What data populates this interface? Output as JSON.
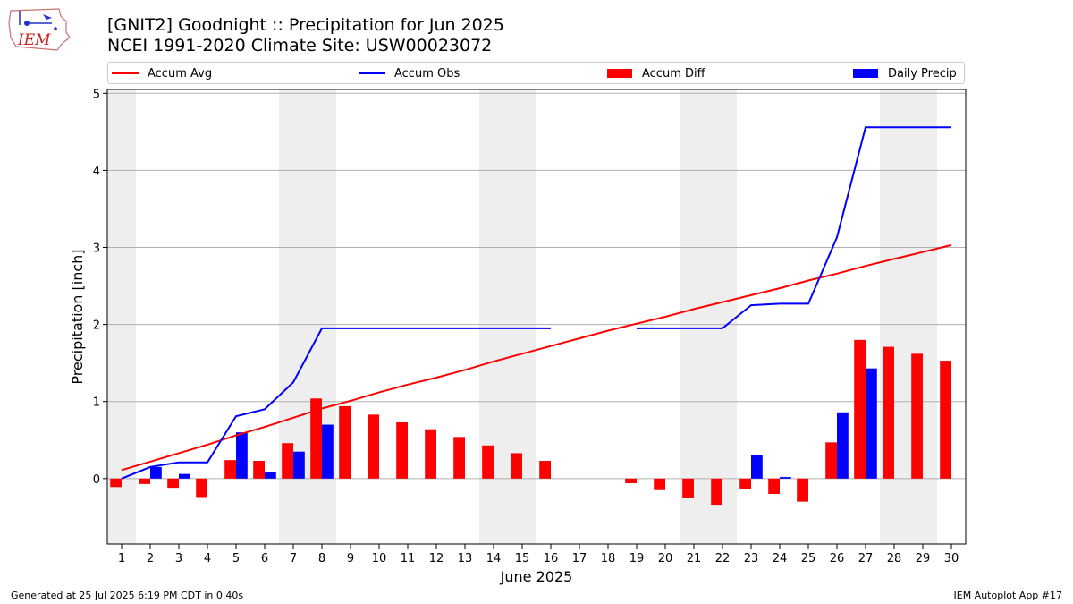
{
  "title_line1": "[GNIT2] Goodnight :: Precipitation for Jun 2025",
  "title_line2": "NCEI 1991-2020 Climate Site: USW00023072",
  "logo_text": "IEM",
  "footer_left": "Generated at 25 Jul 2025 6:19 PM CDT in 0.40s",
  "footer_right": "IEM Autoplot App #17",
  "colors": {
    "avg": "#ff0000",
    "obs": "#0000ff",
    "diff": "#ff0000",
    "daily": "#0000ff",
    "weekend": "#eeeeee",
    "grid": "#b0b0b0"
  },
  "legend": [
    {
      "label": "Accum Avg",
      "kind": "line",
      "color": "#ff0000"
    },
    {
      "label": "Accum Obs",
      "kind": "line",
      "color": "#0000ff"
    },
    {
      "label": "Accum Diff",
      "kind": "patch",
      "color": "#ff0000"
    },
    {
      "label": "Daily Precip",
      "kind": "patch",
      "color": "#0000ff"
    }
  ],
  "chart_data": {
    "type": "bar",
    "xlabel": "June 2025",
    "ylabel": "Precipitation [inch]",
    "xlim": [
      0.5,
      30.5
    ],
    "ylim": [
      -0.85,
      5.05
    ],
    "y_ticks": [
      0,
      1,
      2,
      3,
      4,
      5
    ],
    "x_ticks": [
      1,
      2,
      3,
      4,
      5,
      6,
      7,
      8,
      9,
      10,
      11,
      12,
      13,
      14,
      15,
      16,
      17,
      18,
      19,
      20,
      21,
      22,
      23,
      24,
      25,
      26,
      27,
      28,
      29,
      30
    ],
    "grid": "horizontal",
    "legend_position": "top",
    "weekend_shading": [
      [
        0.5,
        1.5
      ],
      [
        6.5,
        8.5
      ],
      [
        13.5,
        15.5
      ],
      [
        20.5,
        22.5
      ],
      [
        27.5,
        29.5
      ]
    ],
    "days": [
      1,
      2,
      3,
      4,
      5,
      6,
      7,
      8,
      9,
      10,
      11,
      12,
      13,
      14,
      15,
      16,
      17,
      18,
      19,
      20,
      21,
      22,
      23,
      24,
      25,
      26,
      27,
      28,
      29,
      30
    ],
    "series": [
      {
        "name": "Accum Avg",
        "kind": "line",
        "values": [
          0.11,
          0.22,
          0.33,
          0.44,
          0.56,
          0.67,
          0.79,
          0.91,
          1.01,
          1.12,
          1.22,
          1.31,
          1.41,
          1.52,
          1.62,
          1.72,
          1.82,
          1.92,
          2.01,
          2.1,
          2.2,
          2.29,
          2.38,
          2.47,
          2.57,
          2.66,
          2.76,
          2.85,
          2.94,
          3.03
        ]
      },
      {
        "name": "Accum Obs",
        "kind": "line",
        "values": [
          0.0,
          0.15,
          0.21,
          0.21,
          0.81,
          0.9,
          1.25,
          1.95,
          1.95,
          1.95,
          1.95,
          1.95,
          1.95,
          1.95,
          1.95,
          1.95,
          null,
          null,
          1.95,
          1.95,
          1.95,
          1.95,
          2.25,
          2.27,
          2.27,
          3.13,
          4.56,
          4.56,
          4.56,
          4.56
        ]
      },
      {
        "name": "Accum Diff",
        "kind": "bar",
        "values": [
          -0.11,
          -0.07,
          -0.12,
          -0.24,
          0.24,
          0.23,
          0.46,
          1.04,
          0.94,
          0.83,
          0.73,
          0.64,
          0.54,
          0.43,
          0.33,
          0.23,
          null,
          null,
          -0.06,
          -0.15,
          -0.25,
          -0.34,
          -0.13,
          -0.2,
          -0.3,
          0.47,
          1.8,
          1.71,
          1.62,
          1.53
        ]
      },
      {
        "name": "Daily Precip",
        "kind": "bar",
        "values": [
          0,
          0.15,
          0.06,
          0,
          0.6,
          0.09,
          0.35,
          0.7,
          0,
          0,
          0,
          0,
          0,
          0,
          0,
          0,
          null,
          null,
          0,
          0,
          0,
          0,
          0.3,
          0.02,
          0,
          0.86,
          1.43,
          0,
          0,
          0
        ]
      }
    ]
  }
}
